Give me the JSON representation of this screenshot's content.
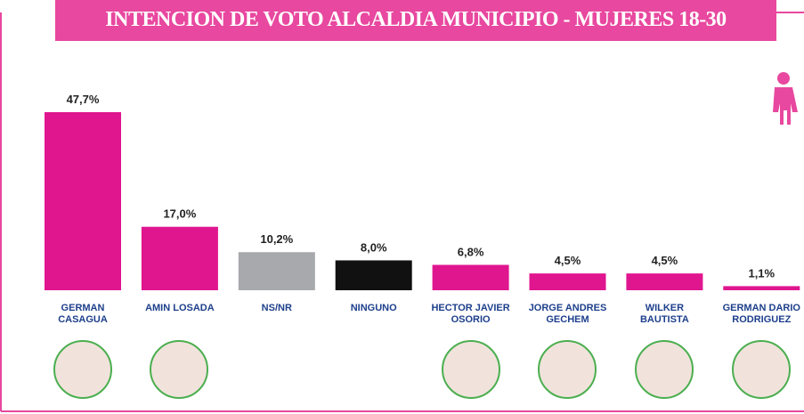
{
  "chart_data": {
    "type": "bar",
    "title": "INTENCION DE VOTO ALCALDIA MUNICIPIO - MUJERES  18-30",
    "categories": [
      "GERMAN CASAGUA",
      "AMIN LOSADA",
      "NS/NR",
      "NINGUNO",
      "HECTOR JAVIER OSORIO",
      "JORGE ANDRES GECHEM",
      "WILKER BAUTISTA",
      "GERMAN DARIO RODRIGUEZ"
    ],
    "values": [
      47.7,
      17.0,
      10.2,
      8.0,
      6.8,
      4.5,
      4.5,
      1.1
    ],
    "value_labels": [
      "47,7%",
      "17,0%",
      "10,2%",
      "8,0%",
      "6,8%",
      "4,5%",
      "4,5%",
      "1,1%"
    ],
    "colors": [
      "#e0168f",
      "#e0168f",
      "#a7a9ac",
      "#111111",
      "#e0168f",
      "#e0168f",
      "#e0168f",
      "#e0168f"
    ]
  }
}
